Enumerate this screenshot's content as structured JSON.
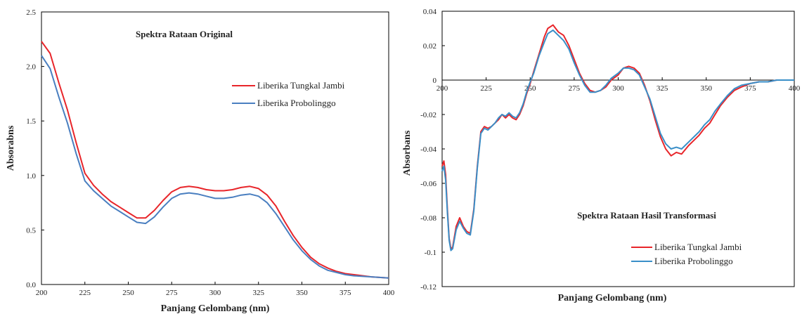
{
  "chart_data": [
    {
      "type": "line",
      "title": "Spektra Rataan Original",
      "xlabel": "Panjang Gelombang (nm)",
      "ylabel": "Absorabns",
      "xlim": [
        200,
        400
      ],
      "ylim": [
        0,
        2.5
      ],
      "xticks": [
        "200",
        "225",
        "250",
        "275",
        "300",
        "325",
        "350",
        "375",
        "400"
      ],
      "yticks": [
        "0.0",
        "0.5",
        "1.0",
        "1.5",
        "2.0",
        "2.5"
      ],
      "legend_position": "right",
      "series": [
        {
          "name": "Liberika Tungkal Jambi",
          "color": "#e8252a",
          "x": [
            200,
            205,
            210,
            215,
            220,
            225,
            230,
            235,
            240,
            245,
            250,
            255,
            260,
            265,
            270,
            275,
            280,
            285,
            290,
            295,
            300,
            305,
            310,
            315,
            320,
            325,
            330,
            335,
            340,
            345,
            350,
            355,
            360,
            365,
            370,
            375,
            380,
            390,
            400
          ],
          "y": [
            2.23,
            2.12,
            1.85,
            1.6,
            1.3,
            1.02,
            0.91,
            0.83,
            0.76,
            0.71,
            0.66,
            0.61,
            0.61,
            0.68,
            0.77,
            0.85,
            0.89,
            0.9,
            0.89,
            0.87,
            0.86,
            0.86,
            0.87,
            0.89,
            0.9,
            0.88,
            0.82,
            0.72,
            0.58,
            0.45,
            0.34,
            0.25,
            0.19,
            0.15,
            0.12,
            0.1,
            0.09,
            0.07,
            0.06
          ]
        },
        {
          "name": "Liberika Probolinggo",
          "color": "#4a7fc0",
          "x": [
            200,
            205,
            210,
            215,
            220,
            225,
            230,
            235,
            240,
            245,
            250,
            255,
            260,
            265,
            270,
            275,
            280,
            285,
            290,
            295,
            300,
            305,
            310,
            315,
            320,
            325,
            330,
            335,
            340,
            345,
            350,
            355,
            360,
            365,
            370,
            375,
            380,
            390,
            400
          ],
          "y": [
            2.1,
            1.98,
            1.72,
            1.48,
            1.2,
            0.95,
            0.86,
            0.79,
            0.72,
            0.67,
            0.62,
            0.57,
            0.56,
            0.62,
            0.71,
            0.79,
            0.83,
            0.84,
            0.83,
            0.81,
            0.79,
            0.79,
            0.8,
            0.82,
            0.83,
            0.81,
            0.75,
            0.65,
            0.53,
            0.41,
            0.31,
            0.23,
            0.17,
            0.13,
            0.11,
            0.09,
            0.08,
            0.07,
            0.06
          ]
        }
      ]
    },
    {
      "type": "line",
      "title": "Spektra Rataan Hasil Transformasi",
      "xlabel": "Panjang Gelombang (nm)",
      "ylabel": "Absorbans",
      "xlim": [
        200,
        400
      ],
      "ylim": [
        -0.12,
        0.04
      ],
      "xticks": [
        "200",
        "225",
        "250",
        "275",
        "300",
        "325",
        "350",
        "375",
        "400"
      ],
      "yticks": [
        "0.04",
        "0.02",
        "0",
        "-0.02",
        "-0.04",
        "-0.06",
        "-0.08",
        "-0.1",
        "-0.12"
      ],
      "legend_position": "bottom-right",
      "series": [
        {
          "name": "Liberika Tungkal Jambi",
          "color": "#e8252a",
          "x": [
            200,
            201,
            202,
            203,
            204,
            205,
            206,
            208,
            210,
            212,
            214,
            216,
            218,
            220,
            222,
            224,
            226,
            228,
            230,
            232,
            234,
            236,
            238,
            240,
            242,
            244,
            246,
            248,
            250,
            252,
            255,
            258,
            260,
            263,
            266,
            269,
            272,
            275,
            278,
            281,
            284,
            287,
            290,
            293,
            296,
            300,
            303,
            306,
            309,
            312,
            315,
            318,
            321,
            324,
            327,
            330,
            333,
            336,
            340,
            343,
            346,
            349,
            352,
            355,
            358,
            362,
            366,
            370,
            375,
            380,
            385,
            390,
            395,
            400
          ],
          "y": [
            -0.05,
            -0.047,
            -0.055,
            -0.075,
            -0.092,
            -0.098,
            -0.097,
            -0.085,
            -0.08,
            -0.085,
            -0.088,
            -0.089,
            -0.075,
            -0.05,
            -0.03,
            -0.027,
            -0.028,
            -0.027,
            -0.025,
            -0.023,
            -0.02,
            -0.022,
            -0.02,
            -0.022,
            -0.023,
            -0.02,
            -0.015,
            -0.008,
            -0.002,
            0.005,
            0.015,
            0.025,
            0.03,
            0.032,
            0.028,
            0.026,
            0.02,
            0.012,
            0.004,
            -0.002,
            -0.006,
            -0.007,
            -0.006,
            -0.004,
            0.0,
            0.003,
            0.007,
            0.008,
            0.007,
            0.004,
            -0.003,
            -0.012,
            -0.023,
            -0.033,
            -0.04,
            -0.044,
            -0.042,
            -0.043,
            -0.038,
            -0.035,
            -0.032,
            -0.028,
            -0.025,
            -0.02,
            -0.015,
            -0.01,
            -0.006,
            -0.004,
            -0.002,
            -0.001,
            -0.001,
            0.0,
            0.0,
            0.0
          ]
        },
        {
          "name": "Liberika Probolinggo",
          "color": "#3a8fc8",
          "x": [
            200,
            201,
            202,
            203,
            204,
            205,
            206,
            208,
            210,
            212,
            214,
            216,
            218,
            220,
            222,
            224,
            226,
            228,
            230,
            232,
            234,
            236,
            238,
            240,
            242,
            244,
            246,
            248,
            250,
            252,
            255,
            258,
            260,
            263,
            266,
            269,
            272,
            275,
            278,
            281,
            284,
            287,
            290,
            293,
            296,
            300,
            303,
            306,
            309,
            312,
            315,
            318,
            321,
            324,
            327,
            330,
            333,
            336,
            340,
            343,
            346,
            349,
            352,
            355,
            358,
            362,
            366,
            370,
            375,
            380,
            385,
            390,
            395,
            400
          ],
          "y": [
            -0.053,
            -0.05,
            -0.058,
            -0.077,
            -0.093,
            -0.099,
            -0.098,
            -0.087,
            -0.082,
            -0.086,
            -0.089,
            -0.09,
            -0.076,
            -0.051,
            -0.031,
            -0.028,
            -0.029,
            -0.027,
            -0.025,
            -0.022,
            -0.02,
            -0.021,
            -0.019,
            -0.021,
            -0.022,
            -0.019,
            -0.014,
            -0.007,
            -0.001,
            0.004,
            0.014,
            0.022,
            0.027,
            0.029,
            0.026,
            0.023,
            0.018,
            0.01,
            0.003,
            -0.003,
            -0.007,
            -0.007,
            -0.006,
            -0.003,
            0.001,
            0.004,
            0.007,
            0.007,
            0.006,
            0.003,
            -0.004,
            -0.011,
            -0.021,
            -0.031,
            -0.037,
            -0.04,
            -0.039,
            -0.04,
            -0.036,
            -0.033,
            -0.03,
            -0.026,
            -0.023,
            -0.018,
            -0.014,
            -0.009,
            -0.005,
            -0.003,
            -0.002,
            -0.001,
            -0.001,
            0.0,
            0.0,
            0.0
          ]
        }
      ]
    }
  ]
}
